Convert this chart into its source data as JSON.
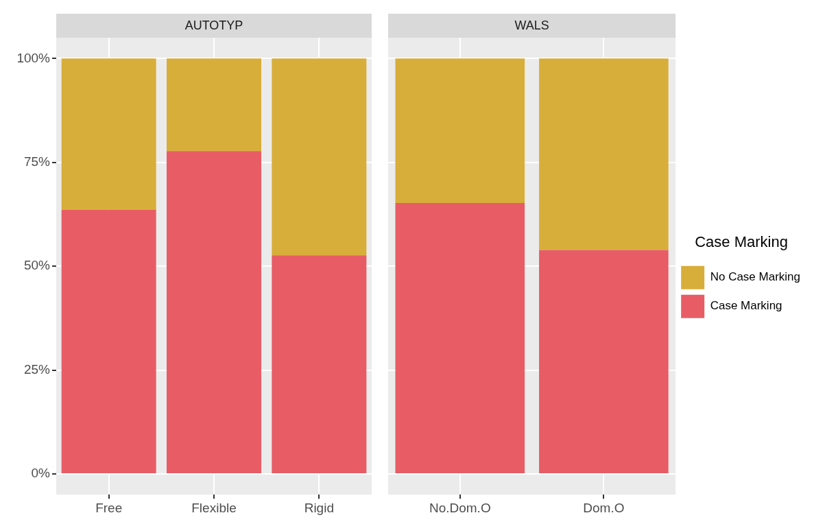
{
  "chart_data": [
    {
      "type": "bar",
      "title": "AUTOTYP",
      "categories": [
        "Free",
        "Flexible",
        "Rigid"
      ],
      "stacked": true,
      "grid": true,
      "legend": false,
      "ylim": [
        -5,
        105
      ],
      "yticks": [
        {
          "value": 0,
          "label": "0%"
        },
        {
          "value": 25,
          "label": "25%"
        },
        {
          "value": 50,
          "label": "50%"
        },
        {
          "value": 75,
          "label": "75%"
        },
        {
          "value": 100,
          "label": "100%"
        }
      ],
      "series": [
        {
          "color": "#e85c66",
          "values": [
            63.6,
            77.7,
            52.6
          ]
        },
        {
          "color": "#d8ae3a",
          "values": [
            36.4,
            22.3,
            47.4
          ]
        }
      ]
    },
    {
      "type": "bar",
      "title": "WALS",
      "categories": [
        "No.Dom.O",
        "Dom.O"
      ],
      "stacked": true,
      "grid": true,
      "legend": "right",
      "legend_title": "Case Marking",
      "tick_labels": "x",
      "ylim": [
        -5,
        105
      ],
      "yticks": [
        {
          "value": 0,
          "label": null
        },
        {
          "value": 25,
          "label": null
        },
        {
          "value": 50,
          "label": null
        },
        {
          "value": 75,
          "label": null
        },
        {
          "value": 100,
          "label": null
        }
      ],
      "series": [
        {
          "name": "Case Marking",
          "color": "#e85c66",
          "values": [
            65.2,
            53.9
          ]
        },
        {
          "name": "No Case Marking",
          "color": "#d8ae3a",
          "values": [
            34.8,
            46.1
          ]
        }
      ]
    }
  ]
}
